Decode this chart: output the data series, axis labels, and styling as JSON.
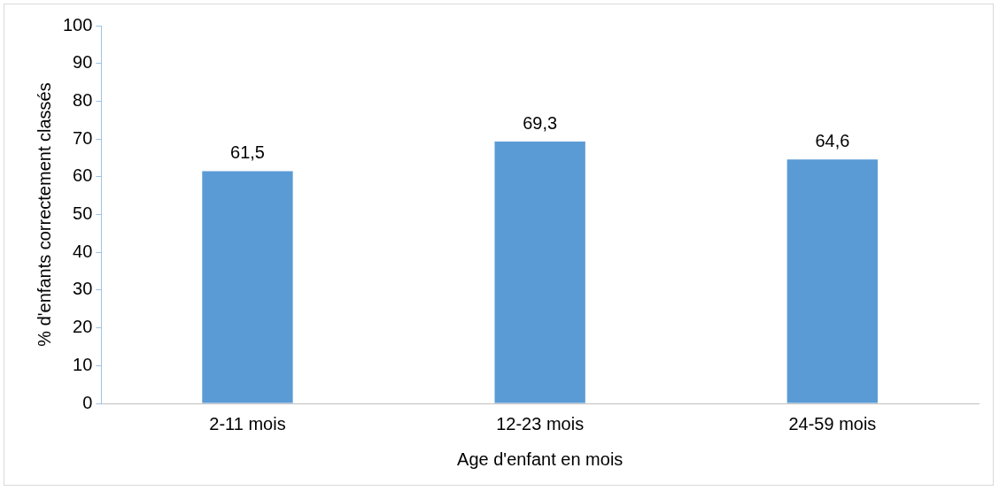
{
  "chart_data": {
    "type": "bar",
    "xlabel": "Age d'enfant en mois",
    "ylabel": "% d'enfants correctement classés",
    "categories": [
      "2-11 mois",
      "12-23 mois",
      "24-59 mois"
    ],
    "values": [
      61.5,
      69.3,
      64.6
    ],
    "value_labels": [
      "61,5",
      "69,3",
      "64,6"
    ],
    "color": "#5b9bd5",
    "ylim": [
      0,
      100
    ],
    "yticks": [
      0,
      10,
      20,
      30,
      40,
      50,
      60,
      70,
      80,
      90,
      100
    ],
    "grid": false,
    "legend": false
  }
}
